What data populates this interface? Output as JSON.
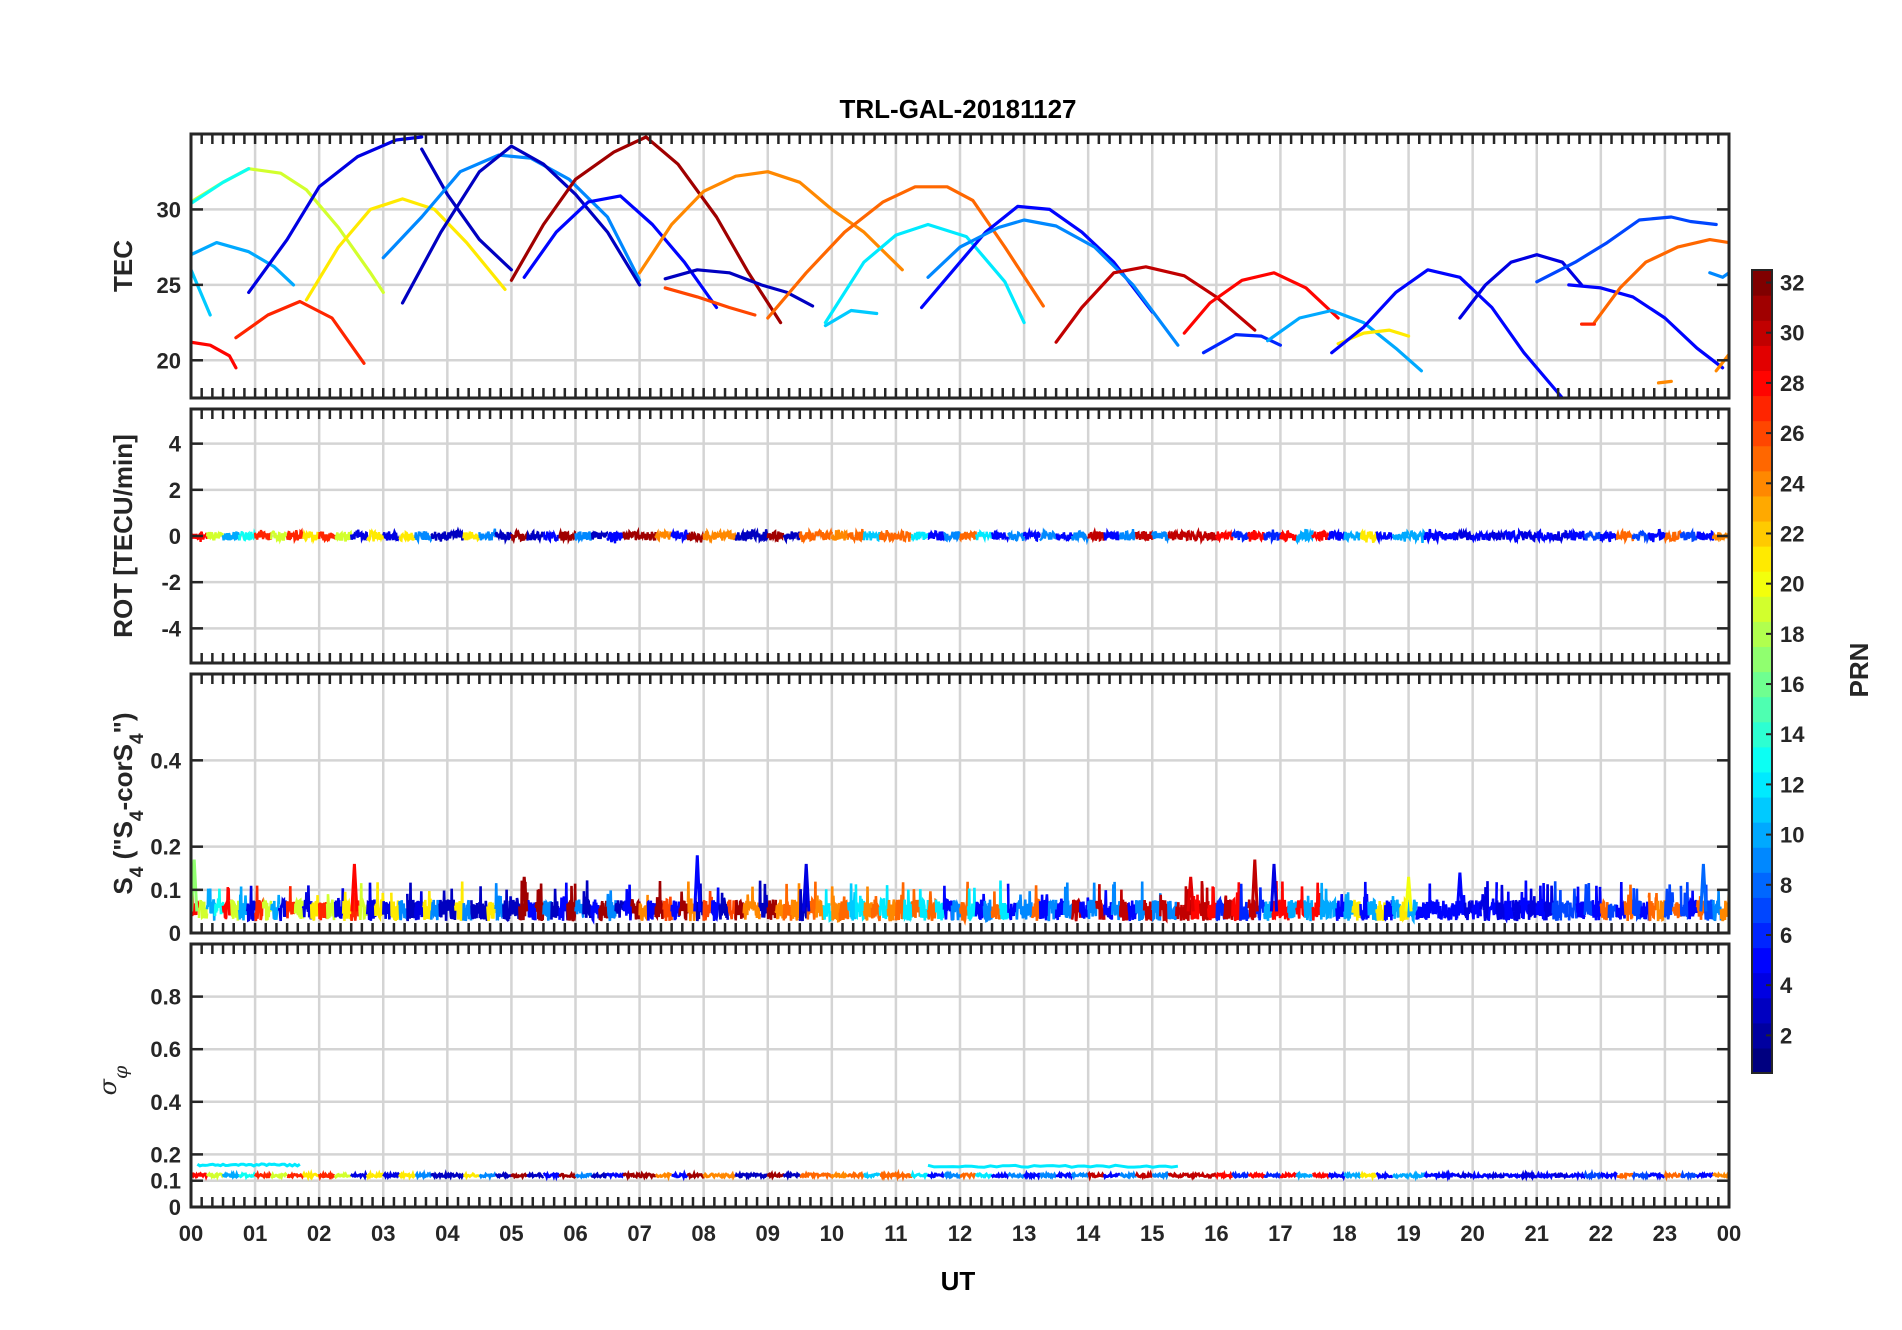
{
  "chart_data": {
    "type": "line",
    "title": "TRL-GAL-20181127",
    "xlabel": "UT",
    "x_tick_labels": [
      "00",
      "01",
      "02",
      "03",
      "04",
      "05",
      "06",
      "07",
      "08",
      "09",
      "10",
      "11",
      "12",
      "13",
      "14",
      "15",
      "16",
      "17",
      "18",
      "19",
      "20",
      "21",
      "22",
      "23",
      "00"
    ],
    "xlim": [
      0,
      24
    ],
    "grid": true,
    "colormap": "jet",
    "colorbar": {
      "label": "PRN",
      "range": [
        1,
        32
      ],
      "ticks": [
        "2",
        "4",
        "6",
        "8",
        "10",
        "12",
        "14",
        "16",
        "18",
        "20",
        "22",
        "24",
        "26",
        "28",
        "30",
        "32"
      ],
      "placement": "right"
    },
    "panels": [
      {
        "name": "tec",
        "ylabel": "TEC",
        "ylim": [
          17.5,
          35
        ],
        "y_ticks": [
          "20",
          "25",
          "30"
        ],
        "series": [
          {
            "prn": 28,
            "x": [
              0.0,
              0.3,
              0.6,
              0.7
            ],
            "values": [
              21.2,
              21.0,
              20.3,
              19.5
            ]
          },
          {
            "prn": 27,
            "x": [
              0.7,
              1.2,
              1.7,
              2.2,
              2.7
            ],
            "values": [
              21.5,
              23.0,
              23.9,
              22.8,
              19.8
            ]
          },
          {
            "prn": 19,
            "x": [
              0.0,
              0.5,
              0.9,
              1.4,
              1.8,
              2.3,
              2.8,
              3.0
            ],
            "values": [
              30.5,
              31.8,
              32.7,
              32.4,
              31.3,
              28.8,
              25.8,
              24.5
            ]
          },
          {
            "prn": 11,
            "x": [
              0.0,
              0.15,
              0.3
            ],
            "values": [
              26.0,
              24.5,
              23.0
            ]
          },
          {
            "prn": 10,
            "x": [
              0.0,
              0.4,
              0.9,
              1.3,
              1.6
            ],
            "values": [
              27.0,
              27.8,
              27.2,
              26.2,
              25.0
            ]
          },
          {
            "prn": 13,
            "x": [
              0.0,
              0.5,
              0.9
            ],
            "values": [
              30.4,
              31.8,
              32.7
            ]
          },
          {
            "prn": 4,
            "x": [
              0.9,
              1.5,
              2.0,
              2.6,
              3.2,
              3.6
            ],
            "values": [
              24.5,
              28.0,
              31.5,
              33.5,
              34.6,
              34.8
            ]
          },
          {
            "prn": 3,
            "x": [
              3.6,
              4.0,
              4.5,
              5.0
            ],
            "values": [
              34.0,
              31.0,
              28.0,
              26.0
            ]
          },
          {
            "prn": 21,
            "x": [
              1.8,
              2.3,
              2.8,
              3.3,
              3.8,
              4.3,
              4.9
            ],
            "values": [
              24.0,
              27.5,
              30.0,
              30.7,
              30.0,
              27.8,
              24.7
            ]
          },
          {
            "prn": 9,
            "x": [
              3.0,
              3.6,
              4.2,
              4.8,
              5.3,
              5.9,
              6.5,
              7.0
            ],
            "values": [
              26.8,
              29.5,
              32.5,
              33.6,
              33.4,
              32.0,
              29.5,
              25.3
            ]
          },
          {
            "prn": 3,
            "x": [
              3.3,
              3.9,
              4.5,
              5.0,
              5.5,
              6.0,
              6.5,
              7.0
            ],
            "values": [
              23.8,
              28.5,
              32.5,
              34.2,
              33.0,
              31.0,
              28.5,
              25.0
            ]
          },
          {
            "prn": 5,
            "x": [
              5.2,
              5.7,
              6.2,
              6.7,
              7.2,
              7.7,
              8.2
            ],
            "values": [
              25.5,
              28.5,
              30.5,
              30.9,
              29.0,
              26.5,
              23.5
            ]
          },
          {
            "prn": 31,
            "x": [
              5.0,
              5.5,
              6.0,
              6.6,
              7.1,
              7.6,
              8.2,
              8.7,
              9.2
            ],
            "values": [
              25.3,
              29.0,
              32.0,
              33.8,
              34.8,
              33.0,
              29.5,
              25.8,
              22.5
            ]
          },
          {
            "prn": 24,
            "x": [
              7.0,
              7.5,
              8.0,
              8.5,
              9.0,
              9.5,
              10.0,
              10.5,
              11.1
            ],
            "values": [
              25.8,
              29.0,
              31.2,
              32.2,
              32.5,
              31.8,
              30.0,
              28.5,
              26.0
            ]
          },
          {
            "prn": 3,
            "x": [
              7.4,
              7.9,
              8.4,
              8.9,
              9.3,
              9.7
            ],
            "values": [
              25.4,
              26.0,
              25.8,
              25.0,
              24.5,
              23.6
            ]
          },
          {
            "prn": 26,
            "x": [
              7.4,
              7.9,
              8.4,
              8.8
            ],
            "values": [
              24.8,
              24.2,
              23.5,
              23.0
            ]
          },
          {
            "prn": 25,
            "x": [
              9.0,
              9.6,
              10.2,
              10.8,
              11.3,
              11.8,
              12.2,
              12.7,
              13.3
            ],
            "values": [
              22.8,
              25.8,
              28.5,
              30.5,
              31.5,
              31.5,
              30.6,
              27.5,
              23.6
            ]
          },
          {
            "prn": 11,
            "x": [
              9.9,
              10.3,
              10.7
            ],
            "values": [
              22.3,
              23.3,
              23.1
            ]
          },
          {
            "prn": 12,
            "x": [
              9.9,
              10.5,
              11.0,
              11.5,
              12.1,
              12.7,
              13.0
            ],
            "values": [
              22.5,
              26.5,
              28.3,
              29.0,
              28.2,
              25.2,
              22.5
            ]
          },
          {
            "prn": 5,
            "x": [
              11.4,
              11.9,
              12.4,
              12.9,
              13.4,
              13.9,
              14.4,
              15.0
            ],
            "values": [
              23.5,
              26.0,
              28.5,
              30.2,
              30.0,
              28.5,
              26.5,
              23.2
            ]
          },
          {
            "prn": 9,
            "x": [
              11.5,
              12.0,
              12.6,
              13.0,
              13.5,
              14.1,
              14.7,
              15.4
            ],
            "values": [
              25.5,
              27.5,
              28.8,
              29.3,
              28.9,
              27.5,
              25.0,
              21.0
            ]
          },
          {
            "prn": 30,
            "x": [
              13.5,
              13.9,
              14.4,
              14.9,
              15.5,
              16.0,
              16.6
            ],
            "values": [
              21.2,
              23.5,
              25.8,
              26.2,
              25.6,
              24.2,
              22.0
            ]
          },
          {
            "prn": 28,
            "x": [
              15.5,
              15.9,
              16.4,
              16.9,
              17.4,
              17.9
            ],
            "values": [
              21.8,
              23.8,
              25.3,
              25.8,
              24.8,
              22.8
            ]
          },
          {
            "prn": 6,
            "x": [
              15.8,
              16.3,
              16.7,
              17.0
            ],
            "values": [
              20.5,
              21.7,
              21.6,
              21.0
            ]
          },
          {
            "prn": 10,
            "x": [
              16.8,
              17.3,
              17.8,
              18.3,
              18.8,
              19.2
            ],
            "values": [
              21.3,
              22.8,
              23.3,
              22.5,
              20.8,
              19.3
            ]
          },
          {
            "prn": 21,
            "x": [
              17.9,
              18.3,
              18.7,
              19.0
            ],
            "values": [
              21.1,
              21.8,
              22.0,
              21.6
            ]
          },
          {
            "prn": 5,
            "x": [
              17.8,
              18.3,
              18.8,
              19.3,
              19.8,
              20.3,
              20.8,
              21.4
            ],
            "values": [
              20.5,
              22.2,
              24.5,
              26.0,
              25.5,
              23.5,
              20.5,
              17.5
            ]
          },
          {
            "prn": 4,
            "x": [
              19.8,
              20.2,
              20.6,
              21.0,
              21.4,
              21.7
            ],
            "values": [
              22.8,
              25.0,
              26.5,
              27.0,
              26.5,
              25.0
            ]
          },
          {
            "prn": 7,
            "x": [
              21.0,
              21.6,
              22.1,
              22.6,
              23.1,
              23.4,
              23.8
            ],
            "values": [
              25.2,
              26.5,
              27.8,
              29.3,
              29.5,
              29.2,
              29.0
            ]
          },
          {
            "prn": 5,
            "x": [
              21.5,
              22.0,
              22.5,
              23.0,
              23.5,
              23.9
            ],
            "values": [
              25.0,
              24.8,
              24.2,
              22.8,
              20.8,
              19.5
            ]
          },
          {
            "prn": 25,
            "x": [
              21.9,
              22.3,
              22.7,
              23.2,
              23.7,
              24.0
            ],
            "values": [
              22.5,
              24.8,
              26.5,
              27.5,
              28.0,
              27.8
            ]
          },
          {
            "prn": 27,
            "x": [
              21.7,
              21.9
            ],
            "values": [
              22.4,
              22.4
            ]
          },
          {
            "prn": 9,
            "x": [
              23.7,
              23.9,
              24.0
            ],
            "values": [
              25.8,
              25.5,
              25.8
            ]
          },
          {
            "prn": 24,
            "x": [
              22.9,
              23.1
            ],
            "values": [
              18.5,
              18.6
            ]
          },
          {
            "prn": 24,
            "x": [
              23.8,
              24.0
            ],
            "values": [
              19.3,
              20.4
            ]
          }
        ]
      },
      {
        "name": "rot",
        "ylabel": "ROT [TECU/min]",
        "ylim": [
          -5.5,
          5.5
        ],
        "y_ticks": [
          "-4",
          "-2",
          "0",
          "2",
          "4"
        ],
        "noise_band": {
          "center": 0,
          "amplitude": 0.2,
          "peak": 0.3
        }
      },
      {
        "name": "s4",
        "ylabel": "S4 (\"S4-corS4\")",
        "ylim": [
          0,
          0.6
        ],
        "y_ticks": [
          "0",
          "0.1",
          "0.2",
          "0.4"
        ],
        "noise_band": {
          "baseline": 0.05,
          "typical_max": 0.11,
          "peak": 0.18
        },
        "spikes": [
          {
            "x": 0.05,
            "value": 0.17,
            "prn": 17
          },
          {
            "x": 2.55,
            "value": 0.16,
            "prn": 28
          },
          {
            "x": 5.2,
            "value": 0.13,
            "prn": 31
          },
          {
            "x": 7.9,
            "value": 0.18,
            "prn": 5
          },
          {
            "x": 9.6,
            "value": 0.16,
            "prn": 4
          },
          {
            "x": 15.6,
            "value": 0.13,
            "prn": 29
          },
          {
            "x": 16.6,
            "value": 0.17,
            "prn": 30
          },
          {
            "x": 16.9,
            "value": 0.16,
            "prn": 4
          },
          {
            "x": 19.0,
            "value": 0.13,
            "prn": 20
          },
          {
            "x": 19.8,
            "value": 0.14,
            "prn": 5
          },
          {
            "x": 23.6,
            "value": 0.16,
            "prn": 8
          }
        ]
      },
      {
        "name": "sigma_phi",
        "ylabel": "σφ",
        "ylim": [
          0,
          1
        ],
        "y_ticks": [
          "0",
          "0.1",
          "0.2",
          "0.4",
          "0.6",
          "0.8"
        ],
        "baseline": 0.12,
        "segments": [
          {
            "prn": 12,
            "x": [
              0.1,
              1.7
            ],
            "value": 0.16
          },
          {
            "prn": 12,
            "x": [
              11.5,
              15.4
            ],
            "value": 0.155
          }
        ]
      }
    ]
  }
}
